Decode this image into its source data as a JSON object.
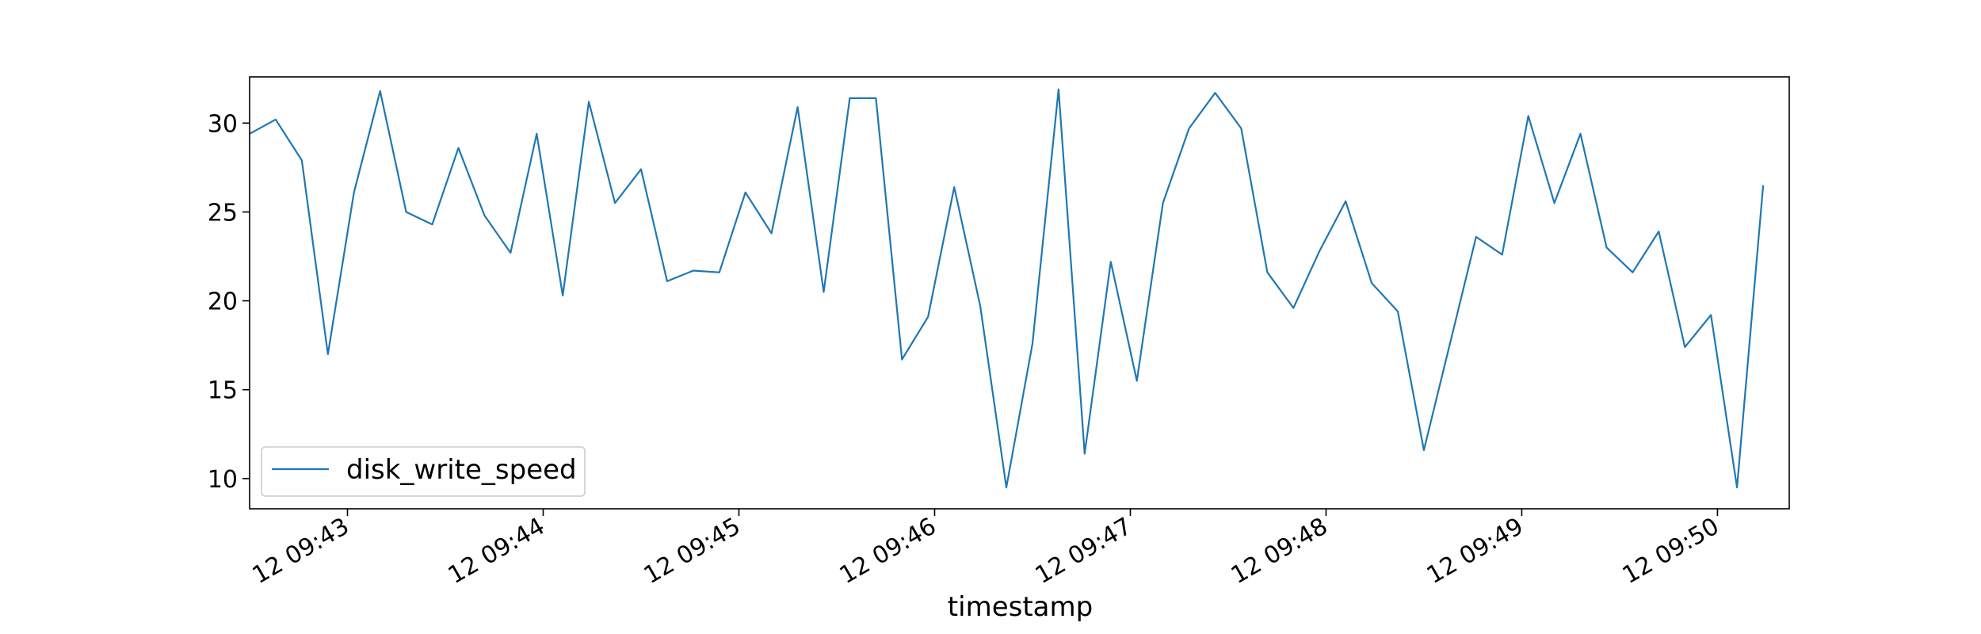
{
  "chart_data": {
    "type": "line",
    "title": "",
    "xlabel": "timestamp",
    "ylabel": "",
    "x_start": "12 09:42:30",
    "x_step_seconds": 8,
    "xlim": [
      "12 09:42:30",
      "12 09:50:22"
    ],
    "ylim": [
      8.3,
      32.6
    ],
    "yticks": [
      10,
      15,
      20,
      25,
      30
    ],
    "xticks": [
      {
        "label": "12 09:43",
        "t": "12 09:43:00"
      },
      {
        "label": "12 09:44",
        "t": "12 09:44:00"
      },
      {
        "label": "12 09:45",
        "t": "12 09:45:00"
      },
      {
        "label": "12 09:46",
        "t": "12 09:46:00"
      },
      {
        "label": "12 09:47",
        "t": "12 09:47:00"
      },
      {
        "label": "12 09:48",
        "t": "12 09:48:00"
      },
      {
        "label": "12 09:49",
        "t": "12 09:49:00"
      },
      {
        "label": "12 09:50",
        "t": "12 09:50:00"
      }
    ],
    "grid": false,
    "legend_position": "lower-left",
    "series": [
      {
        "name": "disk_write_speed",
        "color": "#1f77b4",
        "values": [
          29.4,
          30.2,
          27.9,
          17.0,
          26.1,
          31.8,
          25.0,
          24.3,
          28.6,
          24.8,
          22.7,
          29.4,
          20.3,
          31.2,
          25.5,
          27.4,
          21.1,
          21.7,
          21.6,
          26.1,
          23.8,
          30.9,
          20.5,
          31.4,
          31.4,
          16.7,
          19.1,
          26.4,
          19.7,
          9.5,
          17.6,
          31.9,
          11.4,
          22.2,
          15.5,
          25.5,
          29.7,
          31.7,
          29.7,
          21.6,
          19.6,
          22.8,
          25.6,
          21.0,
          19.4,
          11.6,
          17.6,
          23.6,
          22.6,
          30.4,
          25.5,
          29.4,
          23.0,
          21.6,
          23.9,
          17.4,
          19.2,
          9.5,
          26.5
        ]
      }
    ]
  }
}
